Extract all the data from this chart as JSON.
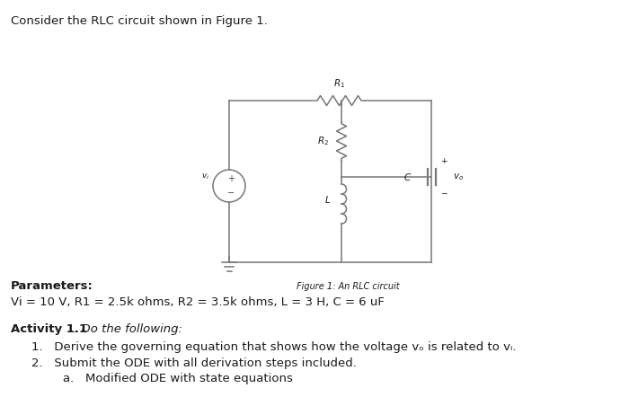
{
  "title_text": "Consider the RLC circuit shown in Figure 1.",
  "figure_caption": "Figure 1: An RLC circuit",
  "params_header": "Parameters:",
  "params_text": "Vi = 10 V, R1 = 2.5k ohms, R2 = 3.5k ohms, L = 3 H, C = 6 uF",
  "activity_bold": "Activity 1.1",
  "activity_italic": ". Do the following:",
  "item1": "Derive the governing equation that shows how the voltage vₒ is related to vᵢ.",
  "item2": "Submit the ODE with all derivation steps included.",
  "item_a": "Modified ODE with state equations",
  "bg_color": "#ffffff",
  "text_color": "#1a1a1a",
  "circuit_color": "#777777",
  "lw": 1.1
}
